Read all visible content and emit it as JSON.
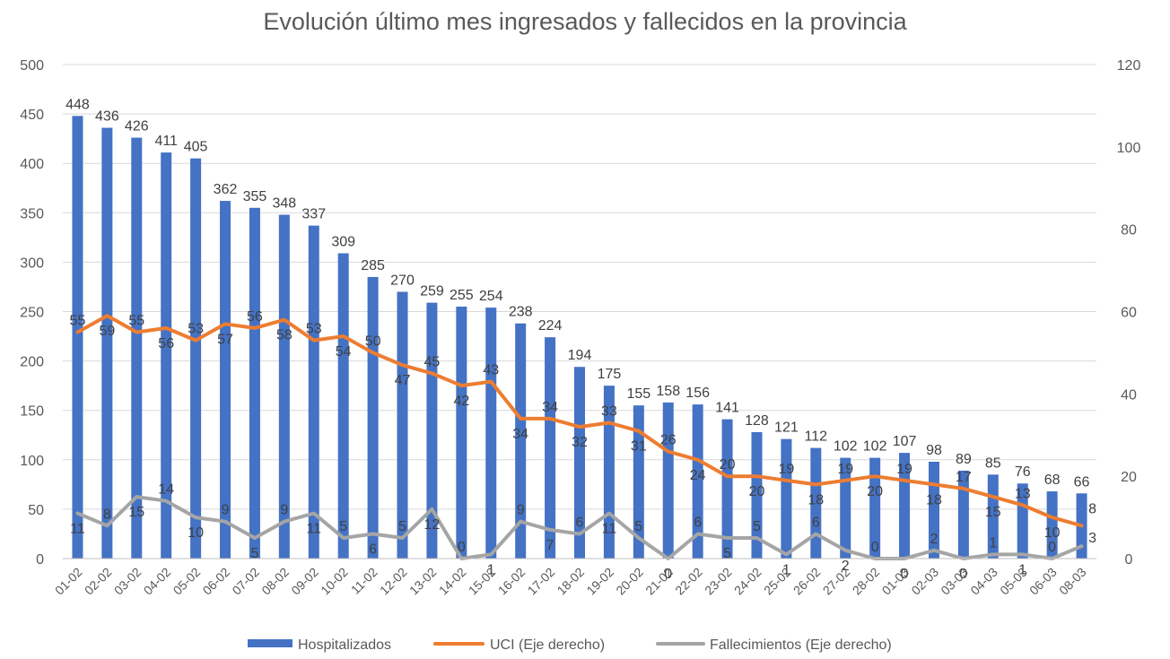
{
  "chart_data": {
    "type": "bar",
    "title": "Evolución último mes ingresados y fallecidos en la provincia",
    "categories": [
      "01-02",
      "02-02",
      "03-02",
      "04-02",
      "05-02",
      "06-02",
      "07-02",
      "08-02",
      "09-02",
      "10-02",
      "11-02",
      "12-02",
      "13-02",
      "14-02",
      "15-02",
      "16-02",
      "17-02",
      "18-02",
      "19-02",
      "20-02",
      "21-02",
      "22-02",
      "23-02",
      "24-02",
      "25-02",
      "26-02",
      "27-02",
      "28-02",
      "01-03",
      "02-03",
      "03-03",
      "04-03",
      "05-03",
      "06-03",
      "08-03"
    ],
    "y_left": {
      "min": 0,
      "max": 500,
      "step": 50
    },
    "y_right": {
      "min": 0,
      "max": 120,
      "step": 20
    },
    "grid": true,
    "legend_position": "bottom",
    "series": [
      {
        "name": "Hospitalizados",
        "kind": "bar",
        "axis": "left",
        "color": "#4472C4",
        "values": [
          448,
          436,
          426,
          411,
          405,
          362,
          355,
          348,
          337,
          309,
          285,
          270,
          259,
          255,
          254,
          238,
          224,
          194,
          175,
          155,
          158,
          156,
          141,
          128,
          121,
          112,
          102,
          102,
          107,
          98,
          89,
          85,
          76,
          68,
          66
        ]
      },
      {
        "name": "UCI (Eje derecho)",
        "kind": "line",
        "axis": "right",
        "color": "#ED7D31",
        "values": [
          55,
          59,
          55,
          56,
          53,
          57,
          56,
          58,
          53,
          54,
          50,
          47,
          45,
          42,
          43,
          34,
          34,
          32,
          33,
          31,
          26,
          24,
          20,
          20,
          19,
          18,
          19,
          20,
          19,
          18,
          17,
          15,
          13,
          10,
          8
        ]
      },
      {
        "name": "Fallecimientos (Eje derecho)",
        "kind": "line",
        "axis": "right",
        "color": "#A5A5A5",
        "values": [
          11,
          8,
          15,
          14,
          10,
          9,
          5,
          9,
          11,
          5,
          6,
          5,
          12,
          0,
          1,
          9,
          7,
          6,
          11,
          5,
          0,
          6,
          5,
          5,
          1,
          6,
          2,
          0,
          0,
          2,
          0,
          1,
          1,
          0,
          3
        ]
      }
    ]
  }
}
